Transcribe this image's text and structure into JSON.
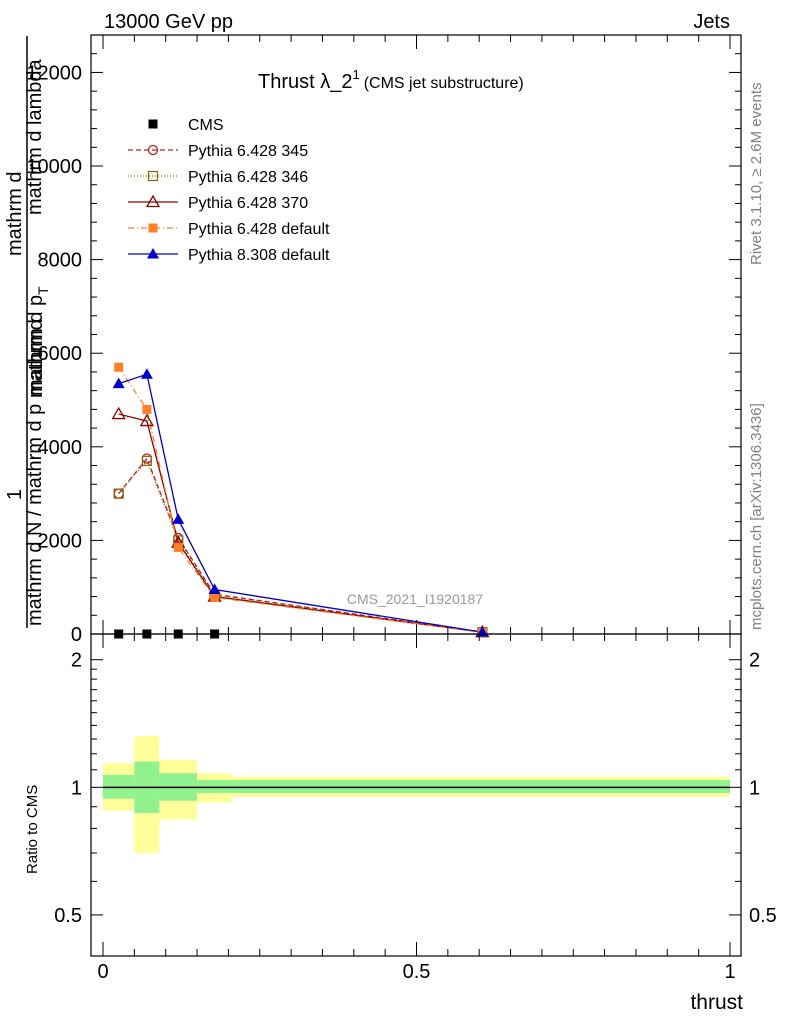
{
  "header": {
    "left": "13000 GeV pp",
    "right": "Jets"
  },
  "side_labels": {
    "rivet": "Rivet 3.1.10, ≥ 2.6M events",
    "mcplots": "mcplots.cern.ch [arXiv:1306.3436]"
  },
  "chart_data": [
    {
      "type": "line",
      "title_main": "Thrust λ_2",
      "title_sup": "1",
      "title_note": "(CMS jet substructure)",
      "watermark": "CMS_2021_I1920187",
      "xlabel": "thrust",
      "ylabel_parts": [
        "1",
        "mathrm d N / mathrm d p",
        "mathrm d",
        "mathrm d lambda",
        "mathrmd",
        "mathrm d p",
        "T"
      ],
      "xlim": [
        0,
        1
      ],
      "ylim": [
        0,
        12800
      ],
      "y_ticks": [
        0,
        2000,
        4000,
        6000,
        8000,
        10000,
        12000
      ],
      "y_tick_labels": [
        "0",
        "2000",
        "4000",
        "6000",
        "8000",
        "10000",
        "12000"
      ],
      "legend_placement": "top-left",
      "x": [
        0.025,
        0.07,
        0.12,
        0.178,
        0.605
      ],
      "series": [
        {
          "name": "CMS",
          "color": "#000000",
          "marker": "square-filled",
          "dash": "none",
          "values": [
            0,
            0,
            0,
            0,
            null
          ]
        },
        {
          "name": "Pythia 6.428 345",
          "color": "#b22222",
          "marker": "circle-open",
          "dash": "5,3",
          "values": [
            3000,
            3750,
            2050,
            850,
            40
          ]
        },
        {
          "name": "Pythia 6.428 346",
          "color": "#8b6914",
          "marker": "square-open",
          "dash": "1,2",
          "values": [
            3000,
            3700,
            2000,
            820,
            40
          ]
        },
        {
          "name": "Pythia 6.428 370",
          "color": "#8b0000",
          "marker": "triangle-open",
          "dash": "none",
          "values": [
            4700,
            4550,
            1950,
            800,
            40
          ]
        },
        {
          "name": "Pythia 6.428 default",
          "color": "#ff7f27",
          "marker": "square-filled",
          "dash": "6,3,1,3",
          "values": [
            5700,
            4800,
            1850,
            780,
            35
          ]
        },
        {
          "name": "Pythia 8.308 default",
          "color": "#0000cd",
          "marker": "triangle-filled",
          "dash": "none",
          "values": [
            5350,
            5550,
            2450,
            950,
            40
          ]
        }
      ]
    },
    {
      "type": "area",
      "ylabel": "Ratio to CMS",
      "xlabel": "thrust",
      "xlim": [
        0,
        1
      ],
      "ylim": [
        0.4,
        2.3
      ],
      "y_ticks": [
        0.5,
        1,
        2
      ],
      "y_tick_labels": [
        "0.5",
        "1",
        "2"
      ],
      "x_ticks": [
        0,
        0.5,
        1
      ],
      "x_tick_labels": [
        "0",
        "0.5",
        "1"
      ],
      "reference_line": 1,
      "bands": [
        {
          "x_start": 0.0,
          "x_end": 0.05,
          "inner_lo": 0.94,
          "inner_hi": 1.07,
          "outer_lo": 0.88,
          "outer_hi": 1.14
        },
        {
          "x_start": 0.05,
          "x_end": 0.09,
          "inner_lo": 0.87,
          "inner_hi": 1.15,
          "outer_lo": 0.7,
          "outer_hi": 1.32
        },
        {
          "x_start": 0.09,
          "x_end": 0.15,
          "inner_lo": 0.93,
          "inner_hi": 1.08,
          "outer_lo": 0.84,
          "outer_hi": 1.16
        },
        {
          "x_start": 0.15,
          "x_end": 0.205,
          "inner_lo": 0.97,
          "inner_hi": 1.04,
          "outer_lo": 0.92,
          "outer_hi": 1.08
        },
        {
          "x_start": 0.205,
          "x_end": 1.0,
          "inner_lo": 0.97,
          "inner_hi": 1.04,
          "outer_lo": 0.95,
          "outer_hi": 1.06
        }
      ],
      "band_colors": {
        "inner": "#8ff28f",
        "outer": "#ffff99"
      }
    }
  ]
}
